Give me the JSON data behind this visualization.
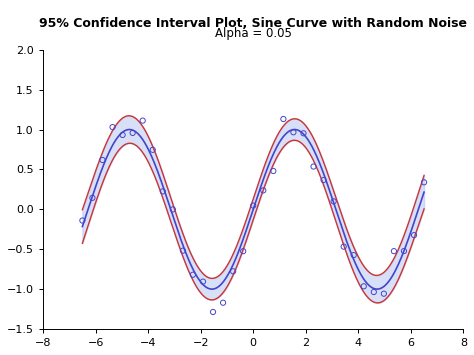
{
  "title": "95% Confidence Interval Plot, Sine Curve with Random Noise",
  "subtitle": "Alpha = 0.05",
  "xlim": [
    -8,
    8
  ],
  "ylim": [
    -1.5,
    2
  ],
  "xticks": [
    -8,
    -6,
    -4,
    -2,
    0,
    2,
    4,
    6,
    8
  ],
  "yticks": [
    -1.5,
    -1,
    -0.5,
    0,
    0.5,
    1,
    1.5,
    2
  ],
  "bg_color": "#ffffff",
  "fit_color": "#4444cc",
  "ci_color": "#cc3333",
  "fill_color": "#aabbee",
  "scatter_color": "#4444cc",
  "alpha_fill": 0.45,
  "noise_seed": 42,
  "n_points": 35,
  "x_start": -6.5,
  "x_end": 6.5,
  "ci_base": 0.13,
  "ci_edge": 0.08
}
